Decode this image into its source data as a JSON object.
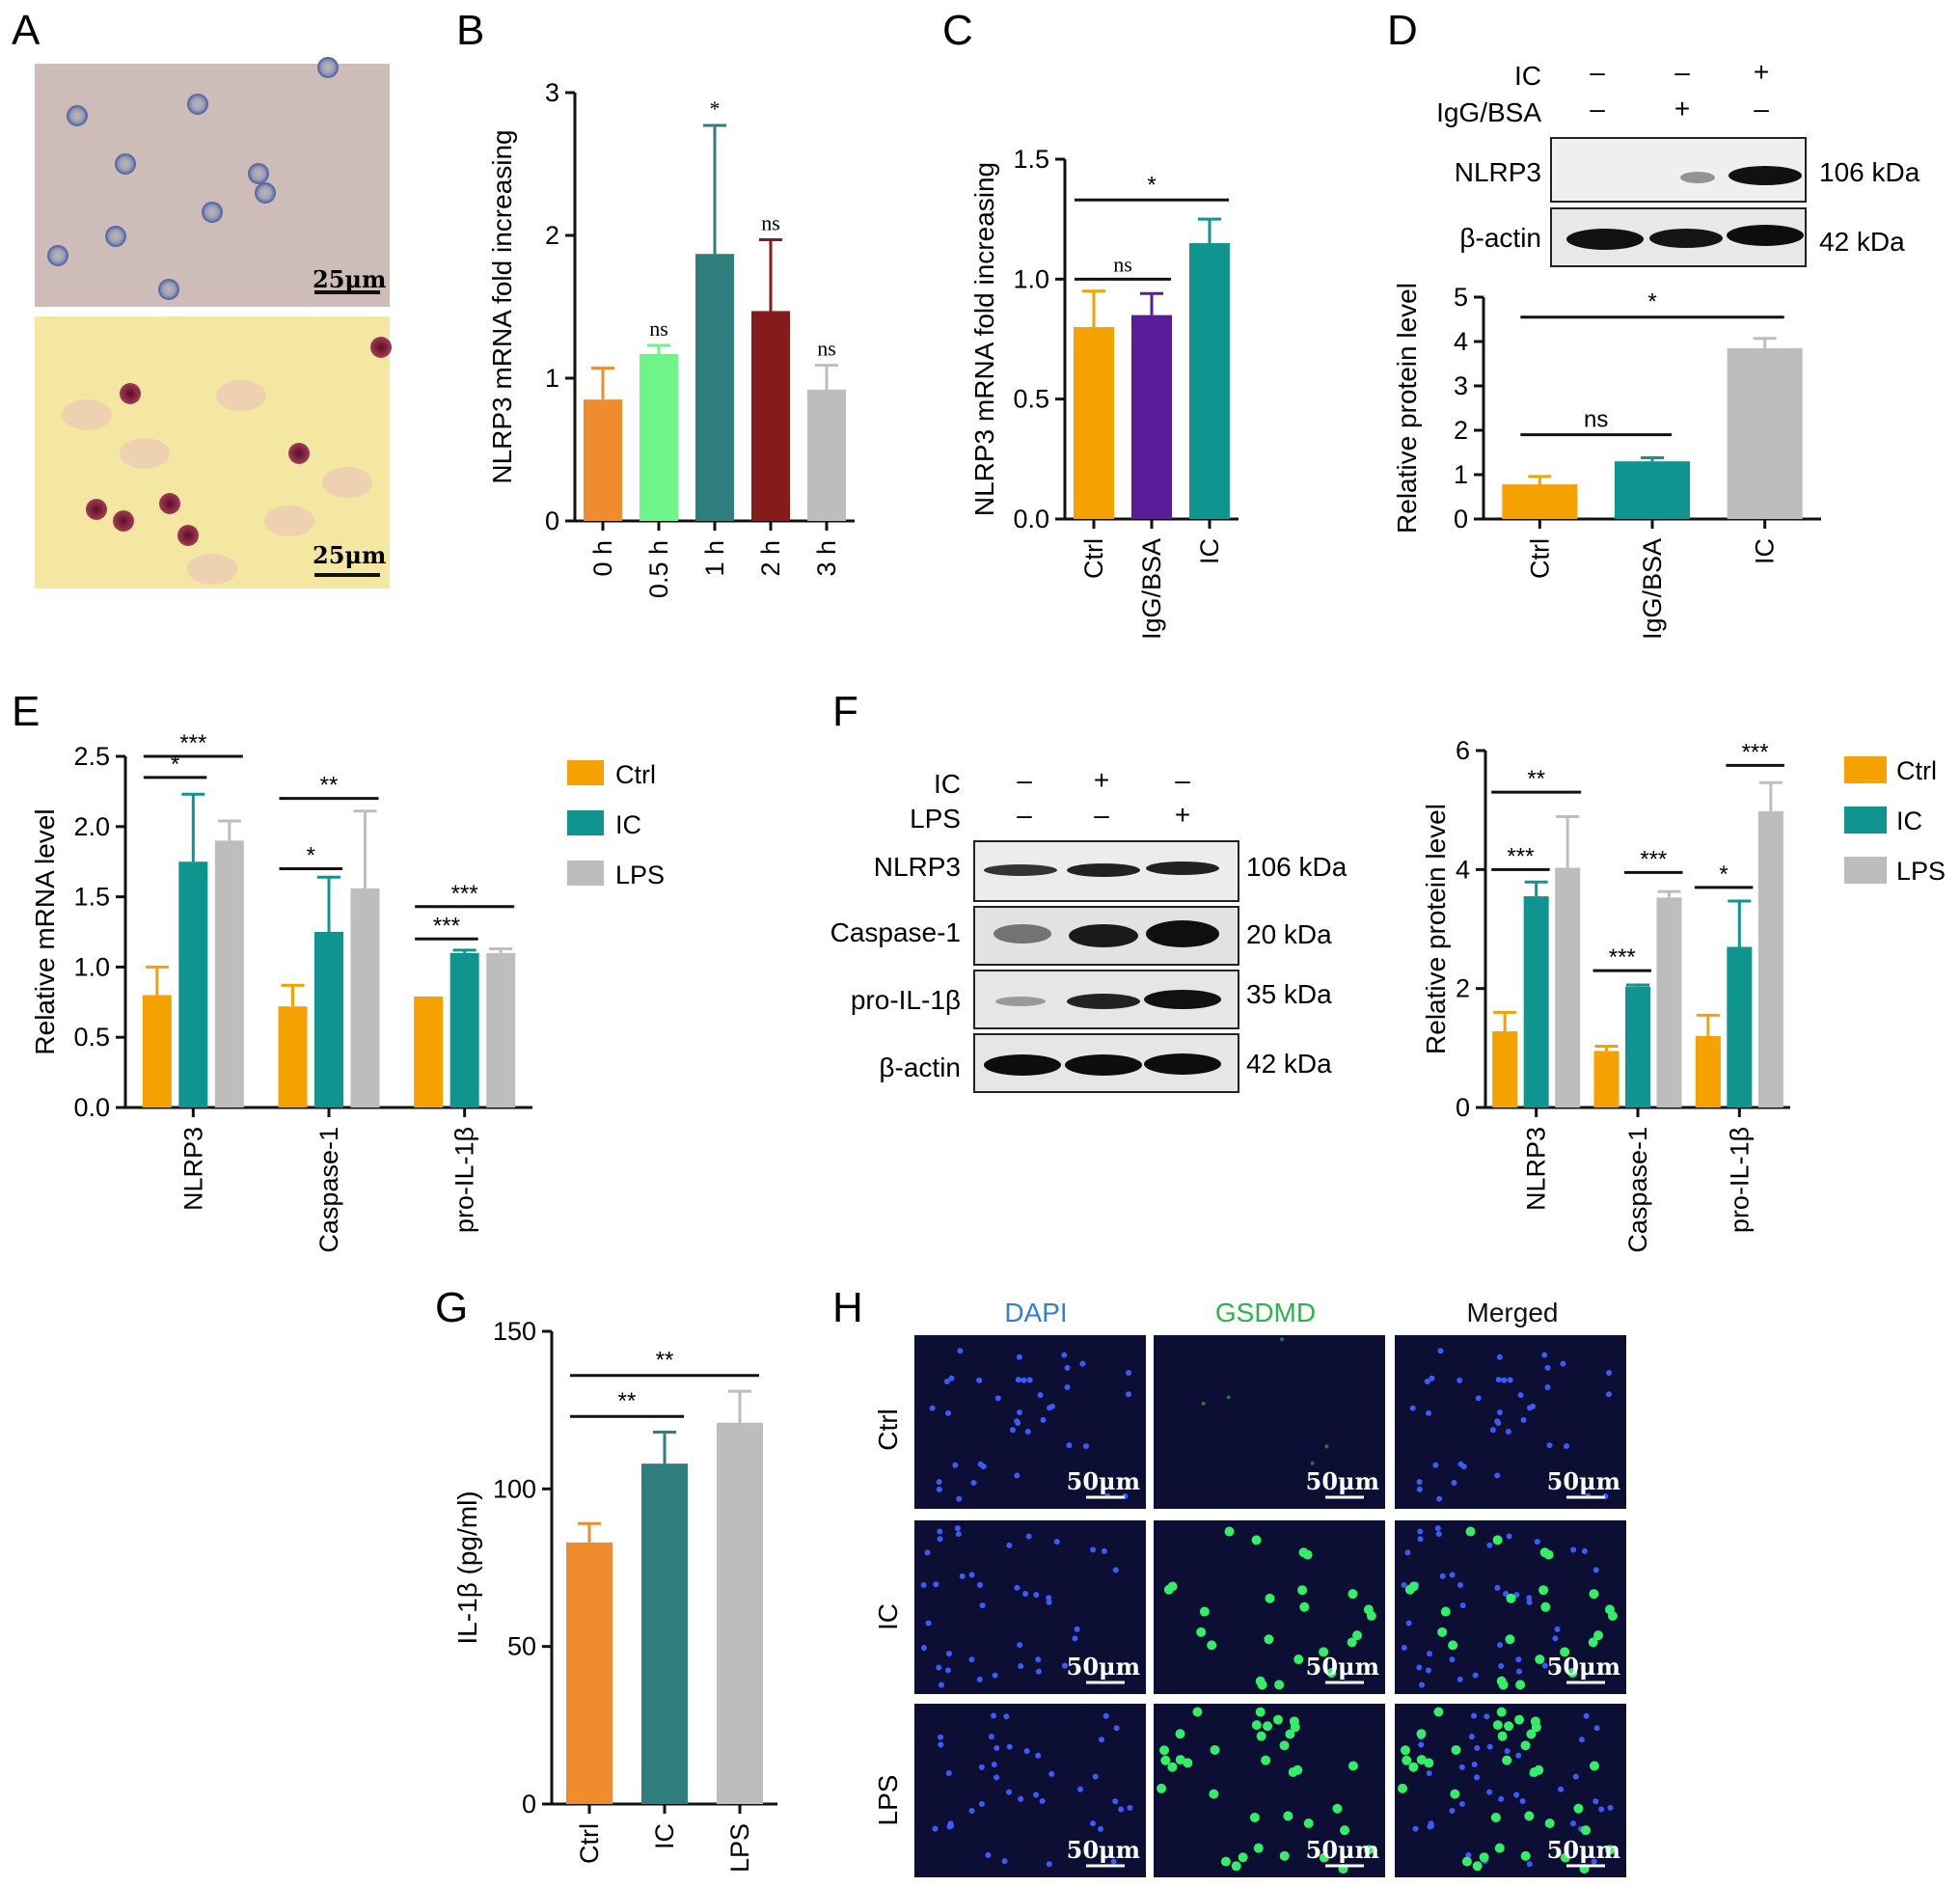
{
  "panel_labels": [
    "A",
    "B",
    "C",
    "D",
    "E",
    "F",
    "G",
    "H"
  ],
  "colors": {
    "orange": "#f5a100",
    "orange2": "#ef8c2e",
    "green": "#6ef58a",
    "teal": "#2f7d7d",
    "teal2": "#0f9490",
    "darkred": "#861b1b",
    "gray": "#bdbdbd",
    "purple": "#5a1c98",
    "blue_label": "#2f7fd2",
    "green_label": "#2cb34a"
  },
  "panel_a": {
    "scale_top": "25μm",
    "scale_bottom": "25μm"
  },
  "chart_data": [
    {
      "panel": "B",
      "type": "bar",
      "categories": [
        "0 h",
        "0.5 h",
        "1 h",
        "2 h",
        "3 h"
      ],
      "values": [
        0.85,
        1.17,
        1.87,
        1.47,
        0.92
      ],
      "errors": [
        0.22,
        0.06,
        0.9,
        0.5,
        0.17
      ],
      "sig": [
        "",
        "ns",
        "*",
        "ns",
        "ns"
      ],
      "ylabel": "NLRP3 mRNA fold increasing",
      "ylim": [
        0,
        3
      ],
      "yticks": [
        "0",
        "1",
        "2",
        "3"
      ]
    },
    {
      "panel": "C",
      "type": "bar",
      "categories": [
        "Ctrl",
        "IgG/BSA",
        "IC"
      ],
      "values": [
        0.8,
        0.85,
        1.15
      ],
      "errors": [
        0.15,
        0.09,
        0.1
      ],
      "ylabel": "NLRP3 mRNA fold increasing",
      "ylim": [
        0,
        1.5
      ],
      "yticks": [
        "0.0",
        "0.5",
        "1.0",
        "1.5"
      ],
      "brackets": [
        {
          "text": "ns",
          "from": 0,
          "to": 1,
          "y": 1.0
        },
        {
          "text": "*",
          "from": 0,
          "to": 2,
          "y": 1.33
        }
      ]
    },
    {
      "panel": "D",
      "type": "bar",
      "categories": [
        "Ctrl",
        "IgG/BSA",
        "IC"
      ],
      "values": [
        0.78,
        1.3,
        3.85
      ],
      "errors": [
        0.18,
        0.08,
        0.22
      ],
      "ylabel": "Relative protein level",
      "ylim": [
        0,
        5
      ],
      "yticks": [
        "0",
        "1",
        "2",
        "3",
        "4",
        "5"
      ],
      "brackets": [
        {
          "text": "ns",
          "from": 0,
          "to": 1,
          "y": 1.9
        },
        {
          "text": "*",
          "from": 0,
          "to": 2,
          "y": 4.55
        }
      ]
    },
    {
      "panel": "E",
      "type": "bar",
      "categories": [
        "NLRP3",
        "Caspase-1",
        "pro-IL-1β"
      ],
      "series": [
        {
          "name": "Ctrl",
          "values": [
            0.8,
            0.72,
            0.79
          ],
          "errors": [
            0.2,
            0.15,
            0.0
          ]
        },
        {
          "name": "IC",
          "values": [
            1.75,
            1.25,
            1.1
          ],
          "errors": [
            0.48,
            0.39,
            0.02
          ]
        },
        {
          "name": "LPS",
          "values": [
            1.9,
            1.56,
            1.1
          ],
          "errors": [
            0.14,
            0.55,
            0.03
          ]
        }
      ],
      "ylabel": "Relative mRNA level",
      "ylim": [
        0,
        2.5
      ],
      "yticks": [
        "0.0",
        "0.5",
        "1.0",
        "1.5",
        "2.0",
        "2.5"
      ],
      "brackets": [
        {
          "text": "*",
          "g": 0,
          "from": 0,
          "to": 1,
          "y": 2.35
        },
        {
          "text": "***",
          "g": 0,
          "from": 0,
          "to": 2,
          "y": 2.5
        },
        {
          "text": "*",
          "g": 1,
          "from": 0,
          "to": 1,
          "y": 1.7
        },
        {
          "text": "**",
          "g": 1,
          "from": 0,
          "to": 2,
          "y": 2.2
        },
        {
          "text": "***",
          "g": 2,
          "from": 0,
          "to": 1,
          "y": 1.2
        },
        {
          "text": "***",
          "g": 2,
          "from": 0,
          "to": 2,
          "y": 1.43
        }
      ]
    },
    {
      "panel": "F",
      "type": "bar",
      "categories": [
        "NLRP3",
        "Caspase-1",
        "pro-IL-1β"
      ],
      "series": [
        {
          "name": "Ctrl",
          "values": [
            1.28,
            0.95,
            1.2
          ],
          "errors": [
            0.32,
            0.08,
            0.35
          ]
        },
        {
          "name": "IC",
          "values": [
            3.55,
            2.03,
            2.7
          ],
          "errors": [
            0.24,
            0.03,
            0.77
          ]
        },
        {
          "name": "LPS",
          "values": [
            4.03,
            3.53,
            4.98
          ],
          "errors": [
            0.86,
            0.1,
            0.48
          ]
        }
      ],
      "ylabel": "Relative protein level",
      "ylim": [
        0,
        6
      ],
      "yticks": [
        "0",
        "2",
        "4",
        "6"
      ],
      "brackets": [
        {
          "text": "***",
          "g": 0,
          "from": 0,
          "to": 1,
          "y": 4.0
        },
        {
          "text": "**",
          "g": 0,
          "from": 0,
          "to": 2,
          "y": 5.3
        },
        {
          "text": "***",
          "g": 1,
          "from": 0,
          "to": 1,
          "y": 2.3
        },
        {
          "text": "***",
          "g": 1,
          "from": 1,
          "to": 2,
          "y": 3.95
        },
        {
          "text": "*",
          "g": 2,
          "from": 0,
          "to": 1,
          "y": 3.7
        },
        {
          "text": "***",
          "g": 2,
          "from": 1,
          "to": 2,
          "y": 5.75
        }
      ]
    },
    {
      "panel": "G",
      "type": "bar",
      "categories": [
        "Ctrl",
        "IC",
        "LPS"
      ],
      "values": [
        83,
        108,
        121
      ],
      "errors": [
        6,
        10,
        10
      ],
      "ylabel": "IL-1β (pg/ml)",
      "ylim": [
        0,
        150
      ],
      "yticks": [
        "0",
        "50",
        "100",
        "150"
      ],
      "brackets": [
        {
          "text": "**",
          "from": 0,
          "to": 1,
          "y": 123
        },
        {
          "text": "**",
          "from": 0,
          "to": 2,
          "y": 136
        }
      ]
    }
  ],
  "legend": [
    "Ctrl",
    "IC",
    "LPS"
  ],
  "blot_d": {
    "row_labels": [
      "IC",
      "IgG/BSA"
    ],
    "row_values": [
      [
        "–",
        "–",
        "+"
      ],
      [
        "–",
        "+",
        "–"
      ]
    ],
    "bands": [
      "NLRP3",
      "β-actin"
    ],
    "sizes": [
      "106 kDa",
      "42 kDa"
    ]
  },
  "blot_f": {
    "row_labels": [
      "IC",
      "LPS"
    ],
    "row_values": [
      [
        "–",
        "+",
        "–"
      ],
      [
        "–",
        "–",
        "+"
      ]
    ],
    "bands": [
      "NLRP3",
      "Caspase-1",
      "pro-IL-1β",
      "β-actin"
    ],
    "sizes": [
      "106 kDa",
      "20 kDa",
      "35 kDa",
      "42 kDa"
    ]
  },
  "panel_h": {
    "columns": [
      "DAPI",
      "GSDMD",
      "Merged"
    ],
    "rows": [
      "Ctrl",
      "IC",
      "LPS"
    ],
    "scale": "50μm"
  }
}
